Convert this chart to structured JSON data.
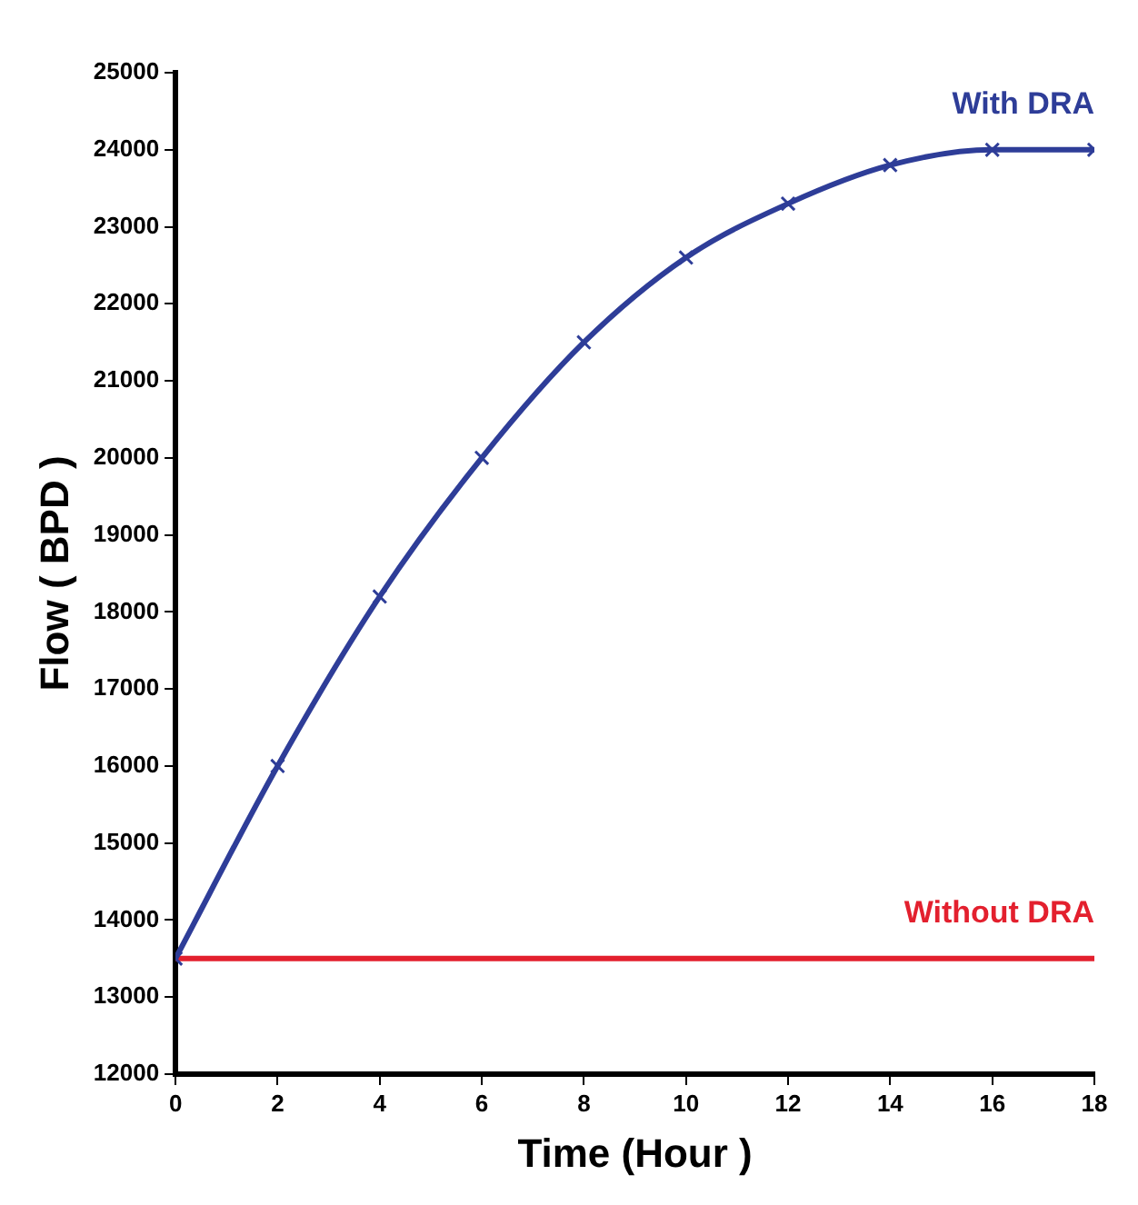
{
  "chart_data": {
    "type": "line",
    "xlabel": "Time (Hour )",
    "ylabel": "Flow ( BPD )",
    "xlim": [
      0,
      18
    ],
    "xticks": [
      0,
      2,
      4,
      6,
      8,
      10,
      12,
      14,
      16,
      18
    ],
    "ylim": [
      12000,
      25000
    ],
    "yticks": [
      12000,
      13000,
      14000,
      15000,
      16000,
      17000,
      18000,
      19000,
      20000,
      21000,
      22000,
      23000,
      24000,
      25000
    ],
    "grid": false,
    "legend": false,
    "series": [
      {
        "name": "With DRA",
        "color": "#2e3d98",
        "marker": "cross",
        "x": [
          0,
          2,
          4,
          6,
          8,
          10,
          12,
          14,
          16,
          18
        ],
        "values": [
          13500,
          16000,
          18200,
          20000,
          21500,
          22600,
          23300,
          23800,
          24000,
          24000
        ]
      },
      {
        "name": "Without DRA",
        "color": "#e3202e",
        "marker": "none",
        "x": [
          0,
          18
        ],
        "values": [
          13500,
          13500
        ]
      }
    ]
  }
}
